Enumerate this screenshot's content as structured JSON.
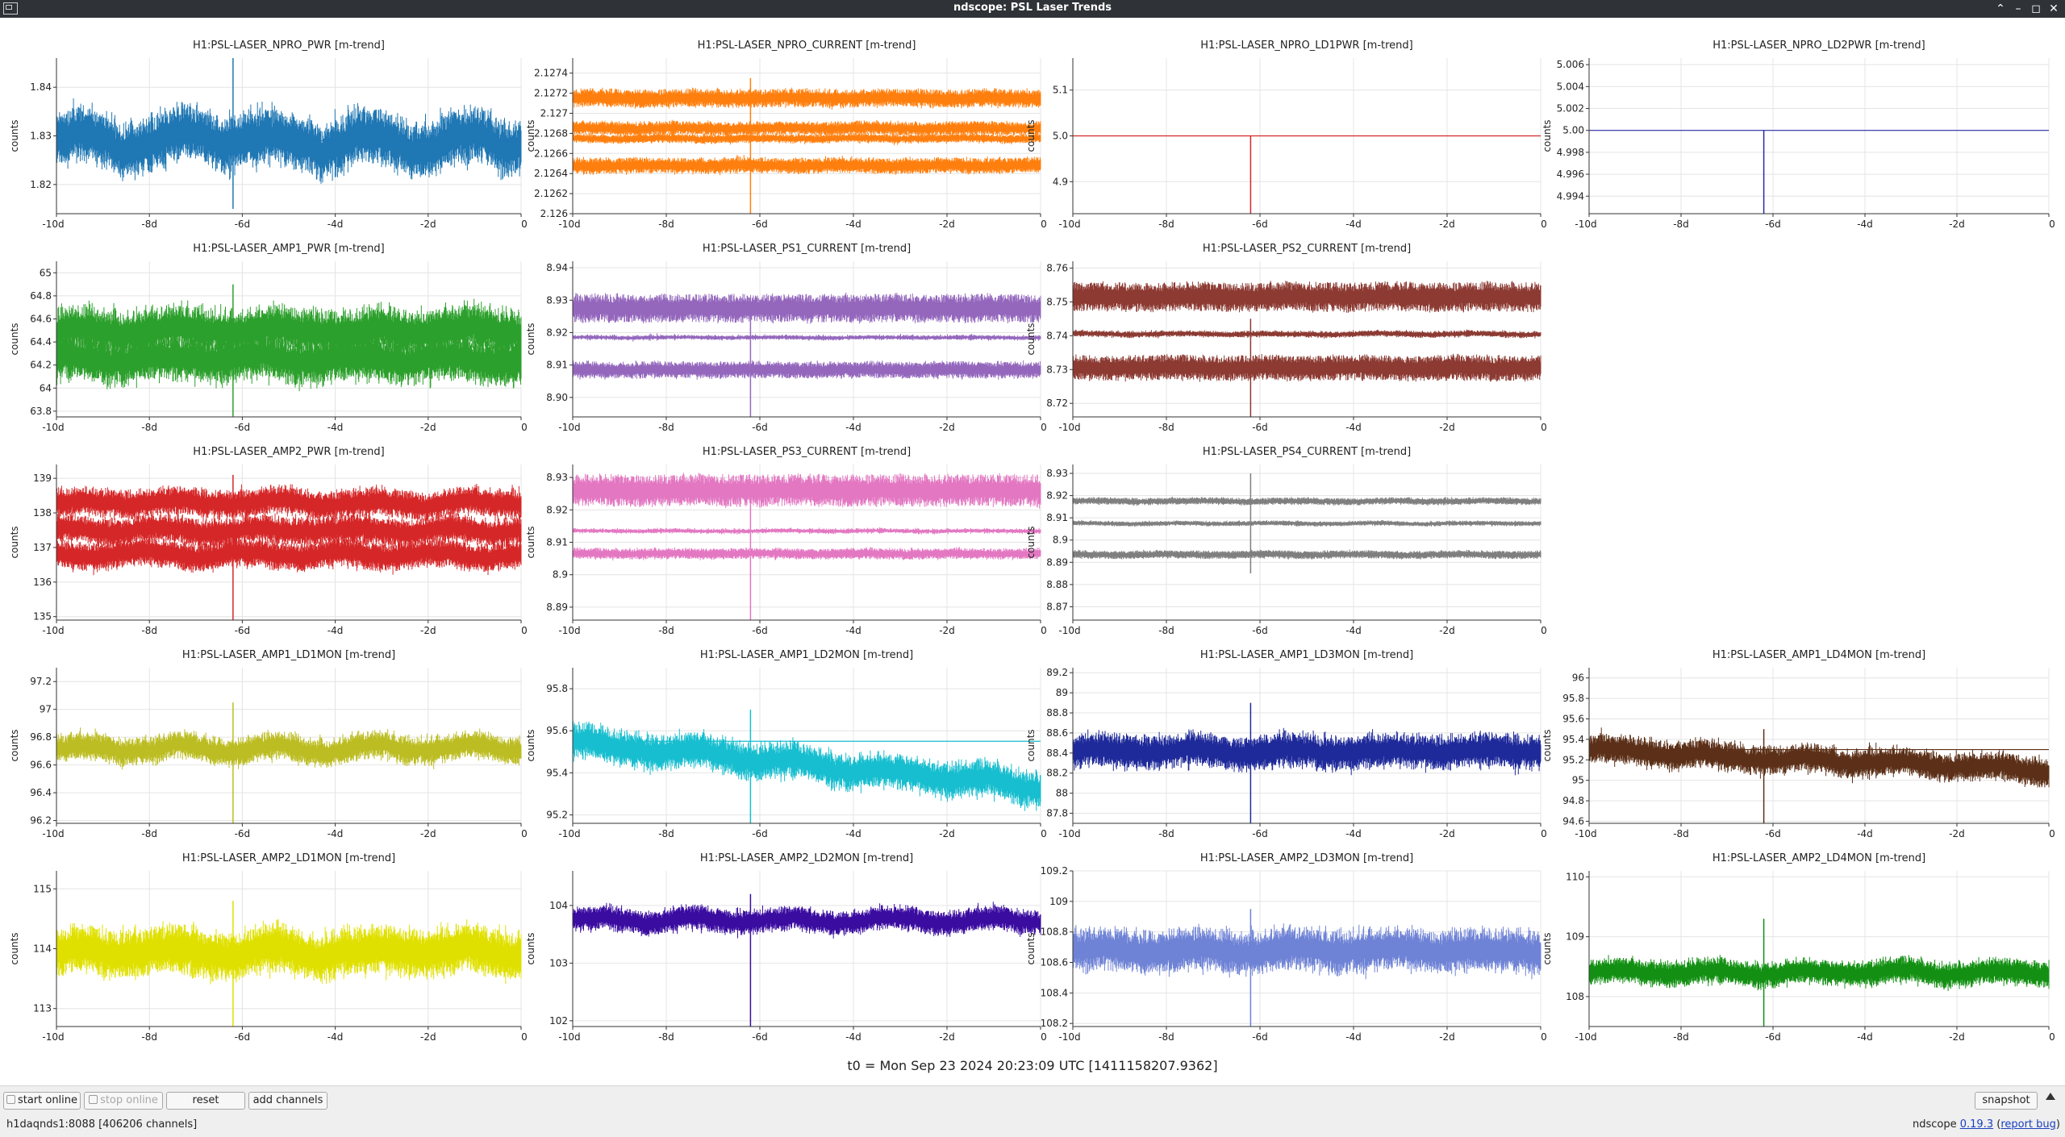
{
  "window": {
    "title": "ndscope: PSL Laser Trends"
  },
  "axis_label": "counts",
  "t0_text": "t0 = Mon Sep 23 2024 20:23:09 UTC [1411158207.9362]",
  "x_ticks": [
    "-10d",
    "-8d",
    "-6d",
    "-4d",
    "-2d",
    "0"
  ],
  "toolbar": {
    "start_online": "start online",
    "stop_online": "stop online",
    "reset": "reset",
    "add_channels": "add channels",
    "snapshot": "snapshot"
  },
  "status": {
    "server": "h1daqnds1:8088 [406206 channels]",
    "version_prefix": "ndscope ",
    "version_link": "0.19.3",
    "report_bug": "report bug"
  },
  "plots": [
    {
      "title": "H1:PSL-LASER_NPRO_PWR [m-trend]",
      "color": "#1f77b4",
      "ymin": 1.814,
      "ymax": 1.846,
      "yticks": [
        "1.82",
        "1.83",
        "1.84"
      ],
      "yvals": [
        1.82,
        1.83,
        1.84
      ],
      "bands": [
        {
          "c": 1.829,
          "a": 0.004
        }
      ],
      "noise": 0.0035,
      "wander": 0.003,
      "dip": 1.815,
      "spike": 1.846
    },
    {
      "title": "H1:PSL-LASER_NPRO_CURRENT [m-trend]",
      "color": "#ff7f0e",
      "ymin": 2.126,
      "ymax": 2.12755,
      "yticks": [
        "2.126",
        "2.1262",
        "2.1264",
        "2.1266",
        "2.1268",
        "2.127",
        "2.1272",
        "2.1274"
      ],
      "yvals": [
        2.126,
        2.1262,
        2.1264,
        2.1266,
        2.1268,
        2.127,
        2.1272,
        2.1274
      ],
      "bands": [
        {
          "c": 2.12715,
          "a": 7e-05
        },
        {
          "c": 2.12685,
          "a": 5e-05
        },
        {
          "c": 2.12675,
          "a": 3e-05
        },
        {
          "c": 2.12648,
          "a": 6e-05
        }
      ],
      "noise": 3e-05,
      "wander": 1e-05,
      "dip": 2.126,
      "spike": 2.12735
    },
    {
      "title": "H1:PSL-LASER_NPRO_LD1PWR [m-trend]",
      "color": "#d62728",
      "ymin": 4.83,
      "ymax": 5.17,
      "yticks": [
        "4.9",
        "5.0",
        "5.1"
      ],
      "yvals": [
        4.9,
        5.0,
        5.1
      ],
      "bands": [
        {
          "c": 5.0,
          "a": 0
        }
      ],
      "noise": 0,
      "wander": 0,
      "dip": 4.83,
      "spike": 5.0
    },
    {
      "title": "H1:PSL-LASER_NPRO_LD2PWR [m-trend]",
      "color": "#2a2aa8",
      "ymin": 4.9924,
      "ymax": 5.0066,
      "yticks": [
        "4.994",
        "4.996",
        "4.998",
        "5.00",
        "5.002",
        "5.004",
        "5.006"
      ],
      "yvals": [
        4.994,
        4.996,
        4.998,
        5.0,
        5.002,
        5.004,
        5.006
      ],
      "bands": [
        {
          "c": 5.0,
          "a": 0
        }
      ],
      "noise": 0,
      "wander": 0,
      "dip": 4.9924,
      "spike": 5.0
    },
    {
      "title": "H1:PSL-LASER_AMP1_PWR [m-trend]",
      "color": "#2ca02c",
      "ymin": 63.75,
      "ymax": 65.1,
      "yticks": [
        "63.8",
        "64",
        "64.2",
        "64.4",
        "64.6",
        "64.8",
        "65"
      ],
      "yvals": [
        63.8,
        64,
        64.2,
        64.4,
        64.6,
        64.8,
        65
      ],
      "bands": [
        {
          "c": 64.5,
          "a": 0.14
        },
        {
          "c": 64.25,
          "a": 0.14
        }
      ],
      "noise": 0.12,
      "wander": 0.05,
      "dip": 63.75,
      "spike": 64.9
    },
    {
      "title": "H1:PSL-LASER_PS1_CURRENT [m-trend]",
      "color": "#9467bd",
      "ymin": 8.894,
      "ymax": 8.942,
      "yticks": [
        "8.90",
        "8.91",
        "8.92",
        "8.93",
        "8.94"
      ],
      "yvals": [
        8.9,
        8.91,
        8.92,
        8.93,
        8.94
      ],
      "bands": [
        {
          "c": 8.9275,
          "a": 0.0035
        },
        {
          "c": 8.9185,
          "a": 0.0004
        },
        {
          "c": 8.9085,
          "a": 0.002
        }
      ],
      "noise": 0.0008,
      "wander": 0.0002,
      "dip": 8.894,
      "spike": 8.928
    },
    {
      "title": "H1:PSL-LASER_PS2_CURRENT [m-trend]",
      "color": "#8c3a32",
      "ymin": 8.716,
      "ymax": 8.762,
      "yticks": [
        "8.72",
        "8.73",
        "8.74",
        "8.75",
        "8.76"
      ],
      "yvals": [
        8.72,
        8.73,
        8.74,
        8.75,
        8.76
      ],
      "bands": [
        {
          "c": 8.7515,
          "a": 0.0035
        },
        {
          "c": 8.7405,
          "a": 0.0006
        },
        {
          "c": 8.7305,
          "a": 0.003
        }
      ],
      "noise": 0.0007,
      "wander": 0.0003,
      "dip": 8.716,
      "spike": 8.745
    },
    null,
    {
      "title": "H1:PSL-LASER_AMP2_PWR [m-trend]",
      "color": "#d62728",
      "ymin": 134.9,
      "ymax": 139.4,
      "yticks": [
        "135",
        "136",
        "137",
        "138",
        "139"
      ],
      "yvals": [
        135,
        136,
        137,
        138,
        139
      ],
      "bands": [
        {
          "c": 138.3,
          "a": 0.3
        },
        {
          "c": 137.5,
          "a": 0.3
        },
        {
          "c": 136.8,
          "a": 0.3
        }
      ],
      "noise": 0.2,
      "wander": 0.15,
      "dip": 134.9,
      "spike": 139.1
    },
    {
      "title": "H1:PSL-LASER_PS3_CURRENT [m-trend]",
      "color": "#e377c2",
      "ymin": 8.886,
      "ymax": 8.934,
      "yticks": [
        "8.89",
        "8.9",
        "8.91",
        "8.92",
        "8.93"
      ],
      "yvals": [
        8.89,
        8.9,
        8.91,
        8.92,
        8.93
      ],
      "bands": [
        {
          "c": 8.926,
          "a": 0.004
        },
        {
          "c": 8.9135,
          "a": 0.0004
        },
        {
          "c": 8.9065,
          "a": 0.0012
        }
      ],
      "noise": 0.0008,
      "wander": 0.0002,
      "dip": 8.886,
      "spike": 8.928
    },
    {
      "title": "H1:PSL-LASER_PS4_CURRENT [m-trend]",
      "color": "#7f7f7f",
      "ymin": 8.864,
      "ymax": 8.934,
      "yticks": [
        "8.87",
        "8.88",
        "8.89",
        "8.9",
        "8.91",
        "8.92",
        "8.93"
      ],
      "yvals": [
        8.87,
        8.88,
        8.89,
        8.9,
        8.91,
        8.92,
        8.93
      ],
      "bands": [
        {
          "c": 8.9175,
          "a": 0.0012
        },
        {
          "c": 8.9075,
          "a": 0.0008
        },
        {
          "c": 8.8935,
          "a": 0.0014
        }
      ],
      "noise": 0.0006,
      "wander": 0.0004,
      "dip": 8.885,
      "spike": 8.93
    },
    null,
    {
      "title": "H1:PSL-LASER_AMP1_LD1MON [m-trend]",
      "color": "#bcbd22",
      "ymin": 96.18,
      "ymax": 97.3,
      "yticks": [
        "96.2",
        "96.4",
        "96.6",
        "96.8",
        "97",
        "97.2"
      ],
      "yvals": [
        96.2,
        96.4,
        96.6,
        96.8,
        97,
        97.2
      ],
      "bands": [
        {
          "c": 96.72,
          "a": 0.07
        }
      ],
      "noise": 0.06,
      "wander": 0.05,
      "dip": 96.18,
      "spike": 97.05
    },
    {
      "title": "H1:PSL-LASER_AMP1_LD2MON [m-trend]",
      "color": "#17becf",
      "ymin": 95.16,
      "ymax": 95.9,
      "yticks": [
        "95.2",
        "95.4",
        "95.6",
        "95.8"
      ],
      "yvals": [
        95.2,
        95.4,
        95.6,
        95.8
      ],
      "bands": [
        {
          "c": 95.55,
          "a": 0.06
        }
      ],
      "noise": 0.05,
      "wander": 0.03,
      "trend": -0.22,
      "dip": 95.16,
      "spike": 95.7
    },
    {
      "title": "H1:PSL-LASER_AMP1_LD3MON [m-trend]",
      "color": "#1f2a9a",
      "ymin": 87.7,
      "ymax": 89.25,
      "yticks": [
        "87.8",
        "88",
        "88.2",
        "88.4",
        "88.6",
        "88.8",
        "89",
        "89.2"
      ],
      "yvals": [
        87.8,
        88,
        88.2,
        88.4,
        88.6,
        88.8,
        89,
        89.2
      ],
      "bands": [
        {
          "c": 88.42,
          "a": 0.12
        }
      ],
      "noise": 0.1,
      "wander": 0.04,
      "dip": 87.7,
      "spike": 88.9
    },
    {
      "title": "H1:PSL-LASER_AMP1_LD4MON [m-trend]",
      "color": "#5c3018",
      "ymin": 94.58,
      "ymax": 96.1,
      "yticks": [
        "94.6",
        "94.8",
        "95",
        "95.2",
        "95.4",
        "95.6",
        "95.8",
        "96"
      ],
      "yvals": [
        94.6,
        94.8,
        95,
        95.2,
        95.4,
        95.6,
        95.8,
        96
      ],
      "bands": [
        {
          "c": 95.3,
          "a": 0.1
        }
      ],
      "noise": 0.08,
      "wander": 0.05,
      "trend": -0.2,
      "dip": 94.58,
      "spike": 95.5
    },
    {
      "title": "H1:PSL-LASER_AMP2_LD1MON [m-trend]",
      "color": "#e0e000",
      "ymin": 112.7,
      "ymax": 115.3,
      "yticks": [
        "113",
        "114",
        "115"
      ],
      "yvals": [
        113,
        114,
        115
      ],
      "bands": [
        {
          "c": 113.95,
          "a": 0.3
        }
      ],
      "noise": 0.2,
      "wander": 0.15,
      "dip": 112.7,
      "spike": 114.8
    },
    {
      "title": "H1:PSL-LASER_AMP2_LD2MON [m-trend]",
      "color": "#3a0ca0",
      "ymin": 101.9,
      "ymax": 104.6,
      "yticks": [
        "102",
        "103",
        "104"
      ],
      "yvals": [
        102,
        103,
        104
      ],
      "bands": [
        {
          "c": 103.75,
          "a": 0.15
        }
      ],
      "noise": 0.12,
      "wander": 0.1,
      "dip": 101.9,
      "spike": 104.2
    },
    {
      "title": "H1:PSL-LASER_AMP2_LD3MON [m-trend]",
      "color": "#6f83d6",
      "ymin": 108.18,
      "ymax": 109.2,
      "yticks": [
        "108.2",
        "108.4",
        "108.6",
        "108.8",
        "109",
        "109.2"
      ],
      "yvals": [
        108.2,
        108.4,
        108.6,
        108.8,
        109,
        109.2
      ],
      "bands": [
        {
          "c": 108.68,
          "a": 0.1
        }
      ],
      "noise": 0.08,
      "wander": 0.03,
      "dip": 108.18,
      "spike": 108.95
    },
    {
      "title": "H1:PSL-LASER_AMP2_LD4MON [m-trend]",
      "color": "#139013",
      "ymin": 107.5,
      "ymax": 110.1,
      "yticks": [
        "108",
        "109",
        "110"
      ],
      "yvals": [
        108,
        109,
        110
      ],
      "bands": [
        {
          "c": 108.4,
          "a": 0.15
        }
      ],
      "noise": 0.12,
      "wander": 0.08,
      "dip": 107.5,
      "spike": 109.3
    }
  ]
}
